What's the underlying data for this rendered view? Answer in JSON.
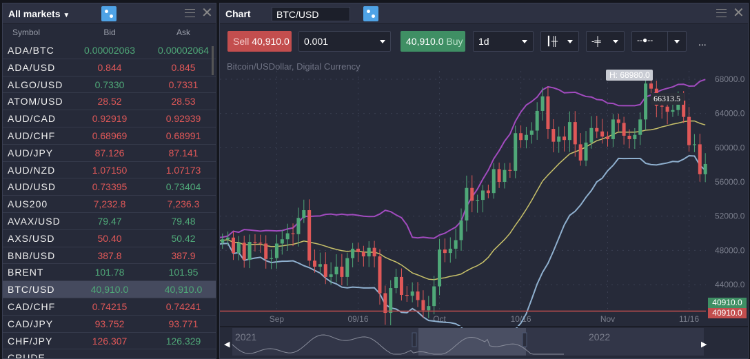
{
  "markets": {
    "title": "All markets",
    "columns": [
      "Symbol",
      "Bid",
      "Ask"
    ],
    "rows": [
      {
        "symbol": "ADA/BTC",
        "bid": "0.00002063",
        "bid_dir": "up",
        "ask": "0.00002064",
        "ask_dir": "up"
      },
      {
        "symbol": "ADA/USD",
        "bid": "0.844",
        "bid_dir": "down",
        "ask": "0.845",
        "ask_dir": "down"
      },
      {
        "symbol": "ALGO/USD",
        "bid": "0.7330",
        "bid_dir": "up",
        "ask": "0.7331",
        "ask_dir": "down"
      },
      {
        "symbol": "ATOM/USD",
        "bid": "28.52",
        "bid_dir": "down",
        "ask": "28.53",
        "ask_dir": "down"
      },
      {
        "symbol": "AUD/CAD",
        "bid": "0.92919",
        "bid_dir": "down",
        "ask": "0.92939",
        "ask_dir": "down"
      },
      {
        "symbol": "AUD/CHF",
        "bid": "0.68969",
        "bid_dir": "down",
        "ask": "0.68991",
        "ask_dir": "down"
      },
      {
        "symbol": "AUD/JPY",
        "bid": "87.126",
        "bid_dir": "down",
        "ask": "87.141",
        "ask_dir": "down"
      },
      {
        "symbol": "AUD/NZD",
        "bid": "1.07150",
        "bid_dir": "down",
        "ask": "1.07173",
        "ask_dir": "down"
      },
      {
        "symbol": "AUD/USD",
        "bid": "0.73395",
        "bid_dir": "down",
        "ask": "0.73404",
        "ask_dir": "up"
      },
      {
        "symbol": "AUS200",
        "bid": "7,232.8",
        "bid_dir": "down",
        "ask": "7,236.3",
        "ask_dir": "down"
      },
      {
        "symbol": "AVAX/USD",
        "bid": "79.47",
        "bid_dir": "up",
        "ask": "79.48",
        "ask_dir": "up"
      },
      {
        "symbol": "AXS/USD",
        "bid": "50.40",
        "bid_dir": "down",
        "ask": "50.42",
        "ask_dir": "up"
      },
      {
        "symbol": "BNB/USD",
        "bid": "387.8",
        "bid_dir": "down",
        "ask": "387.9",
        "ask_dir": "down"
      },
      {
        "symbol": "BRENT",
        "bid": "101.78",
        "bid_dir": "up",
        "ask": "101.95",
        "ask_dir": "up"
      },
      {
        "symbol": "BTC/USD",
        "bid": "40,910.0",
        "bid_dir": "up",
        "ask": "40,910.0",
        "ask_dir": "up",
        "selected": true
      },
      {
        "symbol": "CAD/CHF",
        "bid": "0.74215",
        "bid_dir": "down",
        "ask": "0.74241",
        "ask_dir": "down"
      },
      {
        "symbol": "CAD/JPY",
        "bid": "93.752",
        "bid_dir": "down",
        "ask": "93.771",
        "ask_dir": "down"
      },
      {
        "symbol": "CHF/JPY",
        "bid": "126.307",
        "bid_dir": "down",
        "ask": "126.329",
        "ask_dir": "up"
      },
      {
        "symbol": "CRUDE"
      }
    ]
  },
  "chart": {
    "title": "Chart",
    "symbol": "BTC/USD",
    "toolbar": {
      "sell_label": "Sell",
      "sell_price": "40,910.0",
      "quantity": "0.001",
      "buy_price": "40,910.0",
      "buy_label": "Buy",
      "interval": "1d",
      "more": "..."
    },
    "description": "Bitcoin/USDollar, Digital Currency",
    "high_label": "H: 68980.0",
    "crosshair_label": "66313.5",
    "bid_tag": "40910.0",
    "ask_tag": "40910.0",
    "nav_labels": [
      "2021",
      "2022"
    ]
  },
  "colors": {
    "up": "#4fa878",
    "down": "#e05858",
    "upper_band": "#a24bbf",
    "middle_band": "#c9c26a",
    "lower_band": "#8fb0cf",
    "accent": "#4fa3e6"
  },
  "chart_data": {
    "type": "candlestick",
    "ylim": [
      42000,
      70000
    ],
    "y_ticks": [
      "68000.0",
      "64000.0",
      "60000.0",
      "56000.0",
      "52000.0",
      "48000.0",
      "44000.0"
    ],
    "x_ticks": [
      {
        "label": "Sep",
        "index": 12
      },
      {
        "label": "09/16",
        "index": 27
      },
      {
        "label": "Oct",
        "index": 42
      },
      {
        "label": "10/16",
        "index": 57
      },
      {
        "label": "Nov",
        "index": 73
      },
      {
        "label": "11/16",
        "index": 88
      }
    ],
    "closes": [
      49300,
      48900,
      49300,
      49500,
      47700,
      48900,
      46900,
      49000,
      48900,
      48800,
      47000,
      47100,
      48800,
      49300,
      50000,
      49900,
      51800,
      52700,
      46800,
      46100,
      46400,
      44900,
      45200,
      46100,
      44900,
      47100,
      48200,
      47800,
      47300,
      48300,
      47300,
      43000,
      40700,
      43600,
      44900,
      42800,
      42700,
      43200,
      42200,
      41000,
      41500,
      43800,
      48100,
      47700,
      48200,
      49200,
      51500,
      55300,
      53800,
      53900,
      55000,
      54700,
      57500,
      56000,
      57400,
      57300,
      61700,
      60900,
      61500,
      62000,
      64300,
      66000,
      62200,
      60700,
      61300,
      60900,
      63000,
      60400,
      58500,
      60600,
      62300,
      61900,
      61300,
      61000,
      63300,
      62900,
      61400,
      61000,
      61500,
      63300,
      67500,
      66900,
      64900,
      64800,
      64200,
      64400,
      65500,
      63600,
      60300,
      60400,
      56900,
      58100
    ],
    "high": 68980.0,
    "last": 40910.0,
    "indicators": [
      "Bollinger upper",
      "Bollinger middle",
      "Bollinger lower"
    ]
  }
}
